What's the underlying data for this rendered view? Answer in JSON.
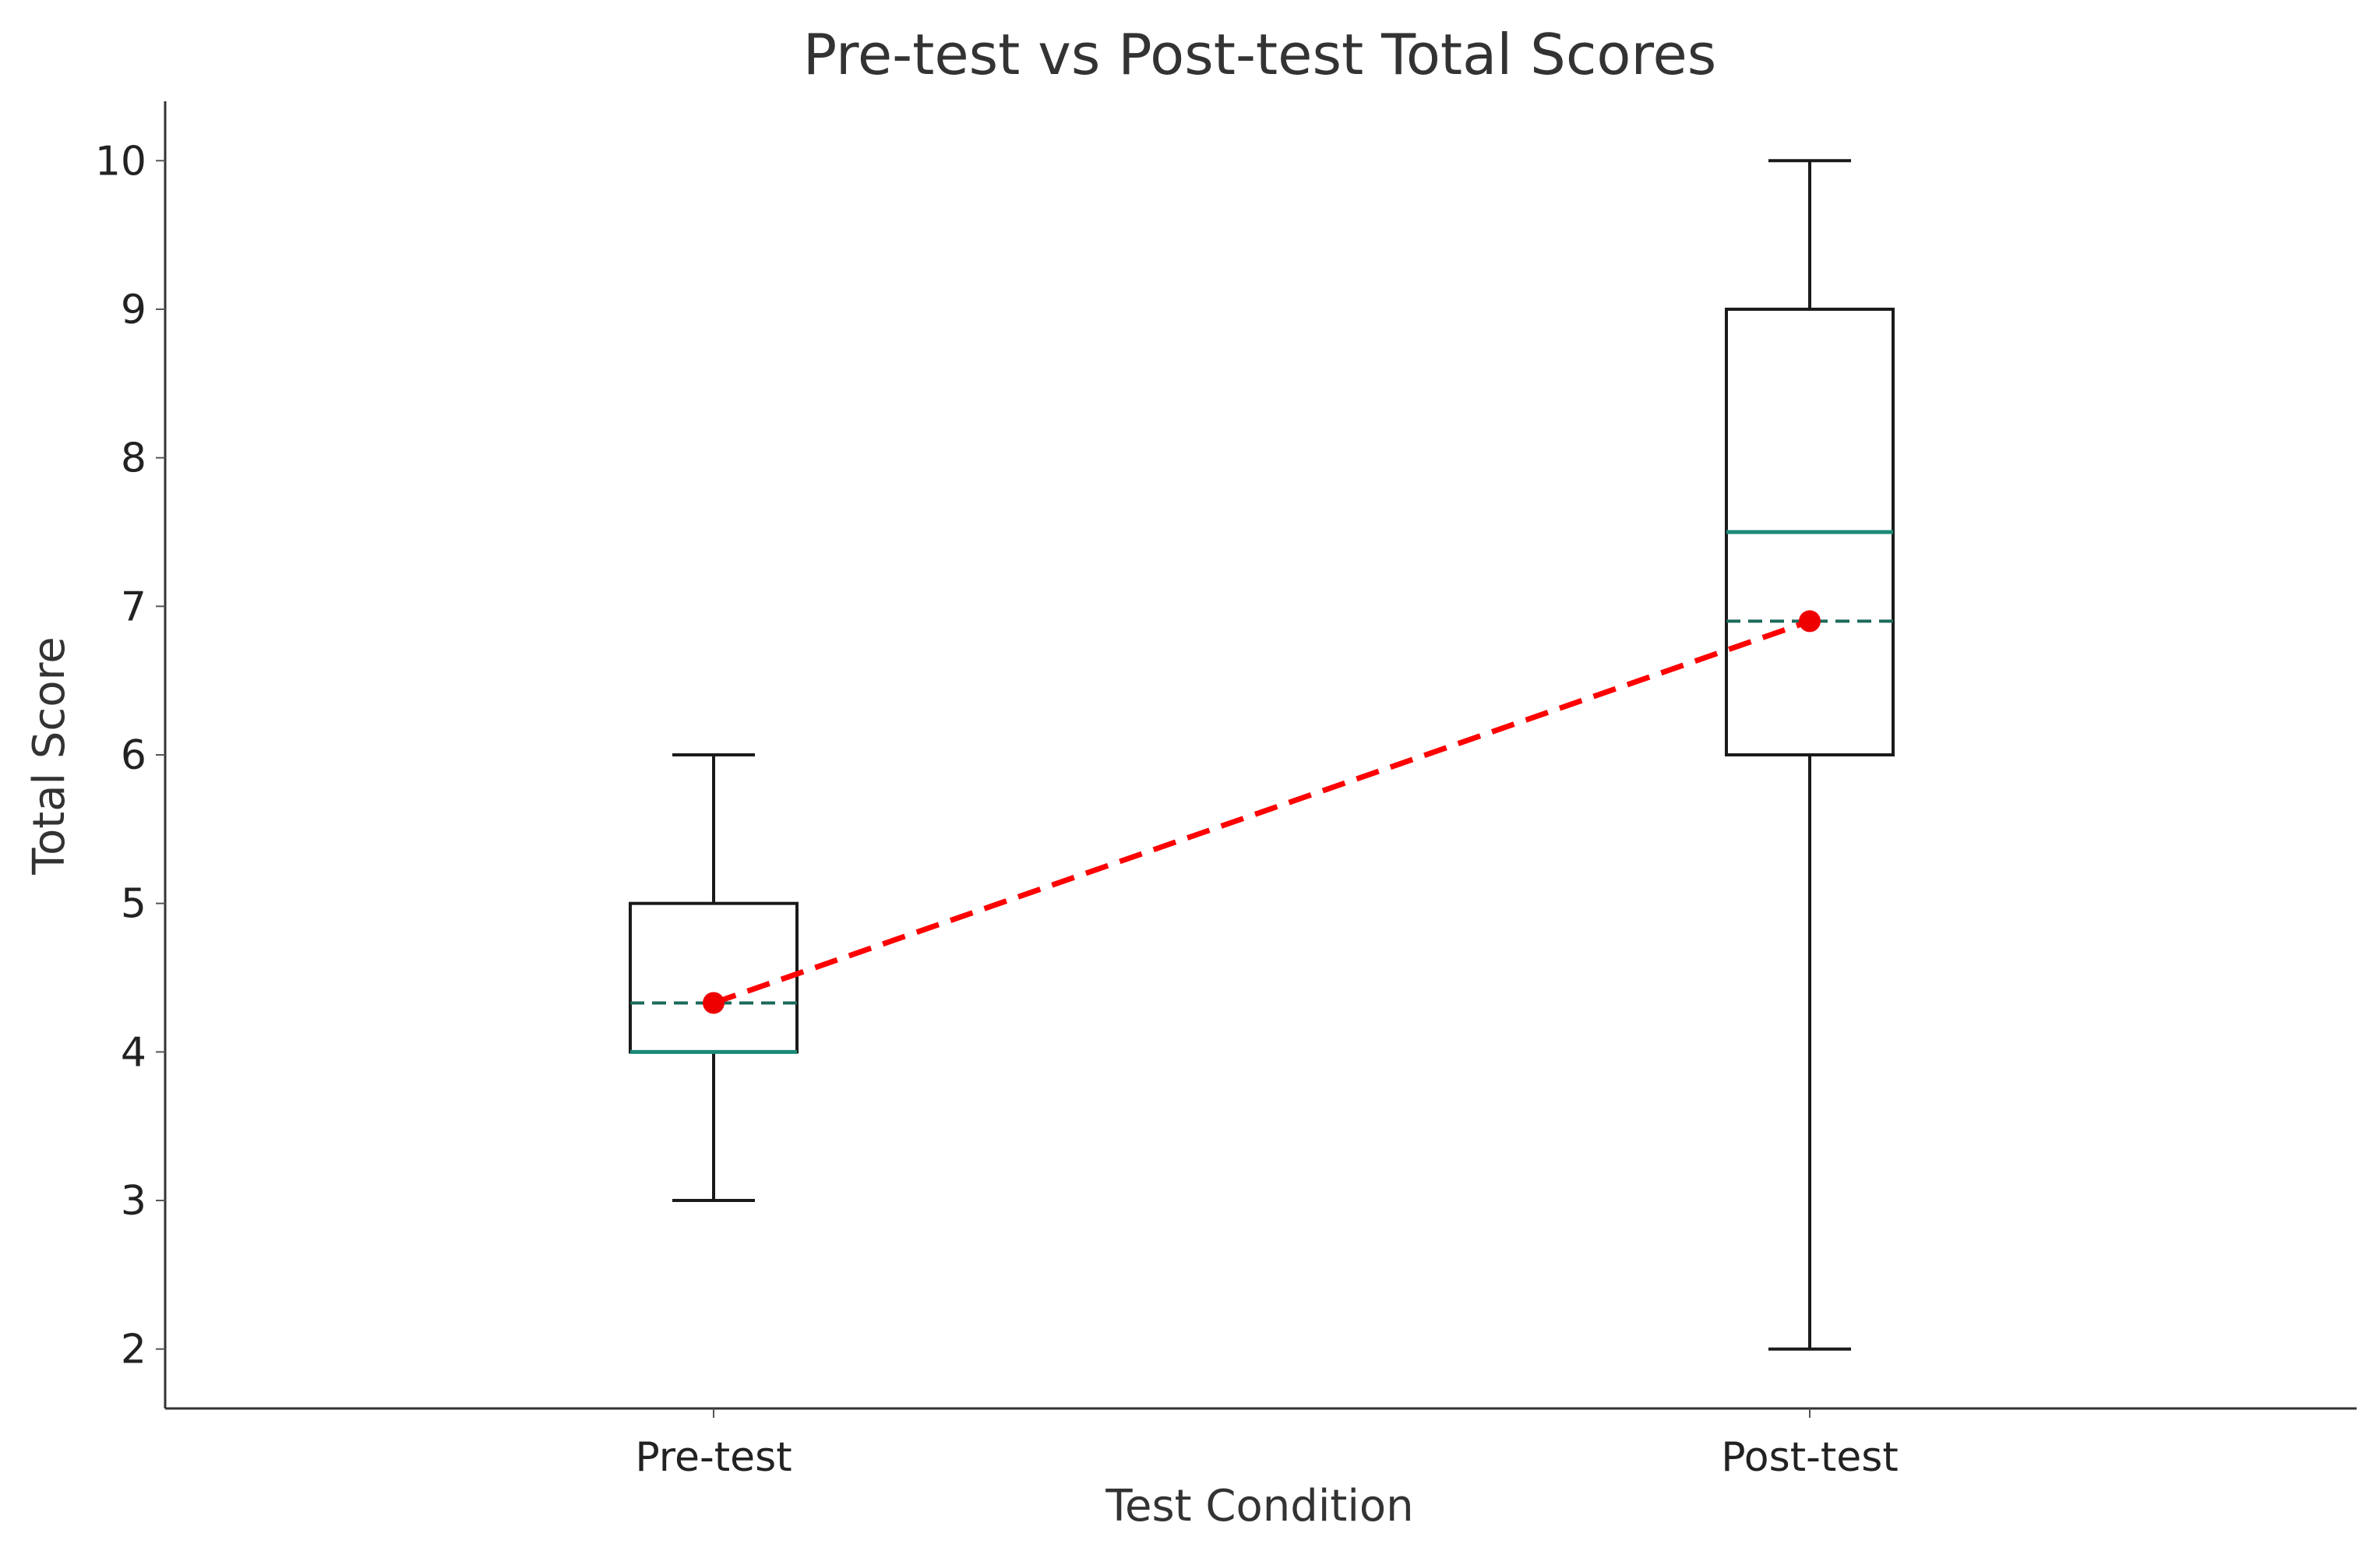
{
  "chart_data": {
    "type": "box",
    "title": "Pre-test vs Post-test Total Scores",
    "xlabel": "Test Condition",
    "ylabel": "Total Score",
    "ylim": [
      1.6,
      10.4
    ],
    "yticks": [
      2,
      3,
      4,
      5,
      6,
      7,
      8,
      9,
      10
    ],
    "categories": [
      "Pre-test",
      "Post-test"
    ],
    "boxes": [
      {
        "category": "Pre-test",
        "whisker_low": 3,
        "q1": 4,
        "median": 4,
        "q3": 5,
        "whisker_high": 6,
        "mean": 4.33
      },
      {
        "category": "Post-test",
        "whisker_low": 2,
        "q1": 6,
        "median": 7.5,
        "q3": 9,
        "whisker_high": 10,
        "mean": 6.9
      }
    ],
    "mean_trend": {
      "values": [
        4.33,
        6.9
      ],
      "color": "#ff0000",
      "style": "dashed"
    },
    "colors": {
      "median": "#1a8a76",
      "mean_line": "#1a6a5a",
      "box": "#1a1a1a",
      "trend": "#ff0000"
    },
    "grid": false
  }
}
